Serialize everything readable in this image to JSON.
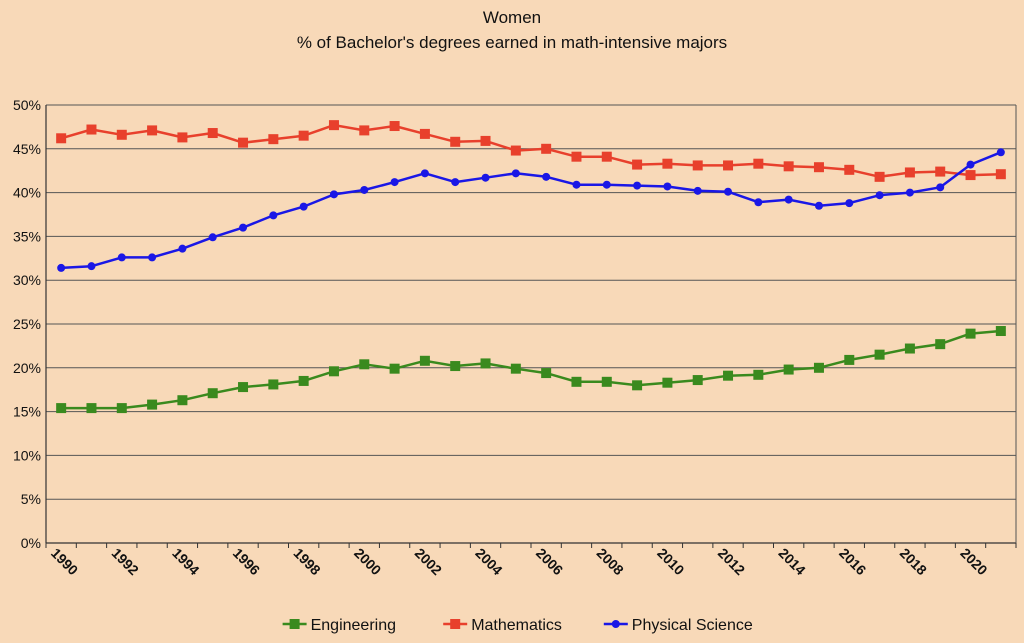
{
  "chart_data": {
    "type": "line",
    "title": "Women",
    "subtitle": "% of Bachelor's degrees earned in math-intensive majors",
    "xlabel": "",
    "ylabel": "",
    "ylim": [
      0,
      50
    ],
    "y_tick_labels": [
      "0%",
      "5%",
      "10%",
      "15%",
      "20%",
      "25%",
      "30%",
      "35%",
      "40%",
      "45%",
      "50%"
    ],
    "x": [
      1990,
      1991,
      1992,
      1993,
      1994,
      1995,
      1996,
      1997,
      1998,
      1999,
      2000,
      2001,
      2002,
      2003,
      2004,
      2005,
      2006,
      2007,
      2008,
      2009,
      2010,
      2011,
      2012,
      2013,
      2014,
      2015,
      2016,
      2017,
      2018,
      2019,
      2020,
      2021
    ],
    "x_tick_labels": [
      "1990",
      "1992",
      "1994",
      "1996",
      "1998",
      "2000",
      "2002",
      "2004",
      "2006",
      "2008",
      "2010",
      "2012",
      "2014",
      "2016",
      "2018",
      "2020"
    ],
    "grid": true,
    "legend_position": "bottom",
    "series": [
      {
        "name": "Engineering",
        "color": "#3a8a1e",
        "marker": "square",
        "values": [
          15.4,
          15.4,
          15.4,
          15.8,
          16.3,
          17.1,
          17.8,
          18.1,
          18.5,
          19.6,
          20.4,
          19.9,
          20.8,
          20.2,
          20.5,
          19.9,
          19.4,
          18.4,
          18.4,
          18.0,
          18.3,
          18.6,
          19.1,
          19.2,
          19.8,
          20.0,
          20.9,
          21.5,
          22.2,
          22.7,
          23.9,
          24.2
        ]
      },
      {
        "name": "Mathematics",
        "color": "#e8402c",
        "marker": "square",
        "values": [
          46.2,
          47.2,
          46.6,
          47.1,
          46.3,
          46.8,
          45.7,
          46.1,
          46.5,
          47.7,
          47.1,
          47.6,
          46.7,
          45.8,
          45.9,
          44.8,
          45.0,
          44.1,
          44.1,
          43.2,
          43.3,
          43.1,
          43.1,
          43.3,
          43.0,
          42.9,
          42.6,
          41.8,
          42.3,
          42.4,
          42.0,
          42.1
        ]
      },
      {
        "name": "Physical Science",
        "color": "#1a17e6",
        "marker": "circle",
        "values": [
          31.4,
          31.6,
          32.6,
          32.6,
          33.6,
          34.9,
          36.0,
          37.4,
          38.4,
          39.8,
          40.3,
          41.2,
          42.2,
          41.2,
          41.7,
          42.2,
          41.8,
          40.9,
          40.9,
          40.8,
          40.7,
          40.2,
          40.1,
          38.9,
          39.2,
          38.5,
          38.8,
          39.7,
          40.0,
          40.6,
          43.2,
          44.6
        ]
      }
    ]
  }
}
